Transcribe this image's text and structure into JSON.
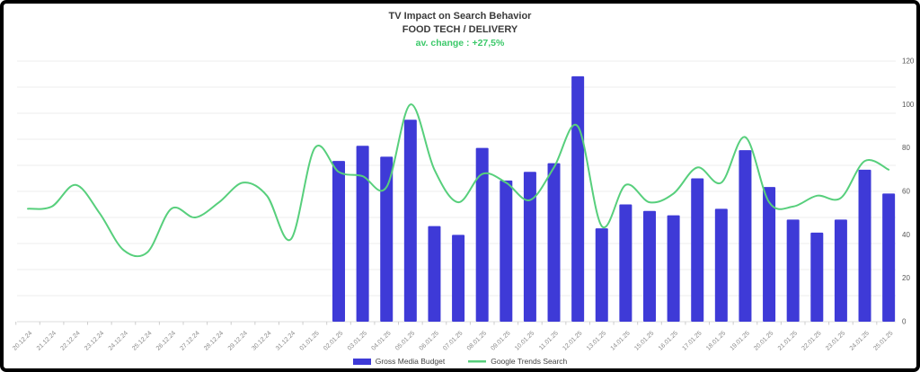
{
  "header": {
    "title": "TV Impact on Search Behavior",
    "subtitle": "FOOD TECH / DELIVERY",
    "change_label": "av. change : +27,5%",
    "change_color": "#3cc96a"
  },
  "axes": {
    "y_right": {
      "min": 0,
      "max": 120,
      "tick_step": 20,
      "tick_labels": [
        "0",
        "20",
        "40",
        "60",
        "80",
        "100",
        "120"
      ]
    },
    "x_label_color": "#888888",
    "y_label_color": "#555555",
    "grid_color": "#eeeeee",
    "axis_line_color": "#dddddd"
  },
  "chart_data": {
    "type": "combo",
    "title": "TV Impact on Search Behavior",
    "subtitle": "FOOD TECH / DELIVERY",
    "annotation": "av. change : +27,5%",
    "ylim": [
      0,
      120
    ],
    "grid": true,
    "legend_position": "bottom",
    "categories": [
      "20.12.24",
      "21.12.24",
      "22.12.24",
      "23.12.24",
      "24.12.24",
      "25.12.24",
      "26.12.24",
      "27.12.24",
      "28.12.24",
      "29.12.24",
      "30.12.24",
      "31.12.24",
      "01.01.25",
      "02.01.25",
      "03.01.25",
      "04.01.25",
      "05.01.25",
      "06.01.25",
      "07.01.25",
      "08.01.25",
      "09.01.25",
      "10.01.25",
      "11.01.25",
      "12.01.25",
      "13.01.25",
      "14.01.25",
      "15.01.25",
      "16.01.25",
      "17.01.25",
      "18.01.25",
      "19.01.25",
      "20.01.25",
      "21.01.25",
      "22.01.25",
      "23.01.25",
      "24.01.25",
      "25.01.25"
    ],
    "series": [
      {
        "name": "Gross Media Budget",
        "type": "bar",
        "color": "#3e3ad7",
        "values": [
          null,
          null,
          null,
          null,
          null,
          null,
          null,
          null,
          null,
          null,
          null,
          null,
          null,
          74,
          81,
          76,
          93,
          44,
          40,
          80,
          65,
          69,
          73,
          113,
          43,
          54,
          51,
          49,
          66,
          52,
          79,
          62,
          47,
          41,
          47,
          70,
          59
        ]
      },
      {
        "name": "Google Trends Search",
        "type": "line",
        "color": "#57cf7c",
        "values": [
          52,
          53,
          63,
          50,
          33,
          32,
          52,
          48,
          55,
          64,
          58,
          38,
          80,
          69,
          67,
          62,
          100,
          70,
          55,
          68,
          64,
          56,
          71,
          90,
          44,
          63,
          55,
          59,
          71,
          64,
          85,
          55,
          53,
          58,
          57,
          74,
          70
        ]
      }
    ]
  }
}
